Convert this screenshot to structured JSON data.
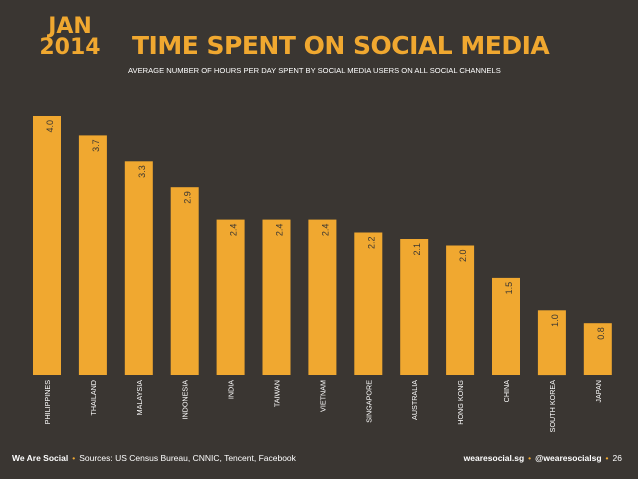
{
  "header": {
    "month": "JAN",
    "year": "2014",
    "title": "TIME SPENT ON SOCIAL MEDIA",
    "subtitle": "AVERAGE NUMBER OF HOURS PER DAY SPENT BY SOCIAL MEDIA USERS ON ALL SOCIAL CHANNELS"
  },
  "colors": {
    "background": "#3a3632",
    "accent": "#f0a830",
    "bar": "#f0a830",
    "text": "#ffffff"
  },
  "chart_data": {
    "type": "bar",
    "title": "TIME SPENT ON SOCIAL MEDIA",
    "xlabel": "",
    "ylabel": "",
    "ylim": [
      0,
      4.0
    ],
    "grid": false,
    "categories": [
      "PHILIPPINES",
      "THAILAND",
      "MALAYSIA",
      "INDONESIA",
      "INDIA",
      "TAIWAN",
      "VIETNAM",
      "SINGAPORE",
      "AUSTRALIA",
      "HONG KONG",
      "CHINA",
      "SOUTH KOREA",
      "JAPAN"
    ],
    "values": [
      4.0,
      3.7,
      3.3,
      2.9,
      2.4,
      2.4,
      2.4,
      2.2,
      2.1,
      2.0,
      1.5,
      1.0,
      0.8
    ],
    "value_labels": [
      "4.0",
      "3.7",
      "3.3",
      "2.9",
      "2.4",
      "2.4",
      "2.4",
      "2.2",
      "2.1",
      "2.0",
      "1.5",
      "1.0",
      "0.8"
    ]
  },
  "footer": {
    "brand": "We Are Social",
    "sources": "Sources: US Census Bureau, CNNIC, Tencent, Facebook",
    "website": "wearesocial.sg",
    "twitter": "@wearesocialsg",
    "page": "26"
  }
}
